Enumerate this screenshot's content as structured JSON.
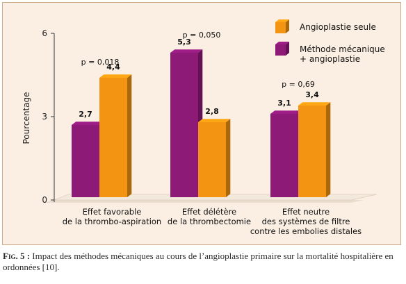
{
  "chart_data": {
    "type": "bar",
    "ylabel": "Pourcentage",
    "ylim": [
      0,
      6
    ],
    "yticks": [
      0,
      3,
      6
    ],
    "grid": false,
    "legend_placement": "top-right",
    "categories": [
      [
        "Effet favorable",
        "de la thrombo-aspiration"
      ],
      [
        "Effet délétère",
        "de la thrombectomie"
      ],
      [
        "Effet neutre",
        "des systèmes de filtre",
        "contre les embolies distales"
      ]
    ],
    "series": [
      {
        "name": "Méthode mécanique + angioplastie",
        "legend_lines": [
          "Méthode mécanique",
          "+ angioplastie"
        ],
        "values": [
          2.7,
          5.3,
          3.1
        ],
        "labels": [
          "2,7",
          "5,3",
          "3,1"
        ],
        "color": "#8e1a78"
      },
      {
        "name": "Angioplastie seule",
        "legend_lines": [
          "Angioplastie seule"
        ],
        "values": [
          4.4,
          2.8,
          3.4
        ],
        "labels": [
          "4,4",
          "2,8",
          "3,4"
        ],
        "color": "#f39413"
      }
    ],
    "annotations": [
      "p = 0,018",
      "p = 0,050",
      "p = 0,69"
    ],
    "ytick_labels": [
      "0",
      "3",
      "6"
    ]
  },
  "caption": {
    "lead": "Fig. 5 :",
    "text": " Impact des méthodes mécaniques au cours de l’angioplastie primaire sur la mortalité hospitalière en ordonnées [10]."
  }
}
